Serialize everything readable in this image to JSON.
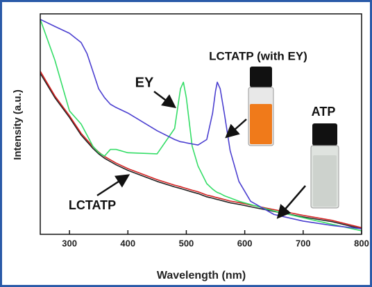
{
  "chart_data": {
    "type": "line",
    "xlabel": "Wavelength (nm)",
    "ylabel": "Intensity (a.u.)",
    "x": [
      250,
      275,
      300,
      320,
      330,
      340,
      350,
      360,
      370,
      380,
      400,
      450,
      480,
      490,
      495,
      500,
      510,
      520,
      535,
      545,
      550,
      553,
      558,
      565,
      575,
      590,
      610,
      650,
      700,
      750,
      800
    ],
    "series": [
      {
        "color": "#222222",
        "values": [
          73,
          62,
          53,
          45,
          42,
          39,
          36.5,
          34.5,
          33,
          31.5,
          29,
          24,
          21.5,
          20.8,
          20.4,
          20,
          19.2,
          18.5,
          17,
          16.4,
          16,
          15.8,
          15.5,
          15,
          14.3,
          13.6,
          12.5,
          10.4,
          7.9,
          5.7,
          2.5
        ]
      },
      {
        "color": "#d42020",
        "values": [
          74,
          62.8,
          53.8,
          45.8,
          42.8,
          39.8,
          37.3,
          35.3,
          33.8,
          32.3,
          29.8,
          24.8,
          22.3,
          21.6,
          21.2,
          20.8,
          20,
          19.3,
          17.8,
          17.2,
          16.8,
          16.6,
          16.3,
          15.8,
          15.1,
          14.4,
          13.3,
          11.2,
          8.6,
          6.3,
          3
        ]
      },
      {
        "color": "#33dd66",
        "values": [
          97.5,
          79,
          56,
          50,
          45,
          40,
          37,
          35.5,
          38.5,
          38.5,
          37,
          36.5,
          48,
          66,
          69,
          62,
          40,
          31,
          23,
          20.5,
          19.5,
          19,
          18.5,
          17.5,
          16.5,
          15,
          13.5,
          10.6,
          7.5,
          4.5,
          1.6
        ]
      },
      {
        "color": "#4b3fd0",
        "values": [
          97.5,
          94.3,
          91.2,
          87,
          82,
          74,
          66,
          62,
          59,
          57.5,
          55,
          47,
          43,
          42,
          41.8,
          41.5,
          41,
          40.5,
          43,
          55,
          65,
          69,
          66,
          55,
          38,
          24,
          15,
          9,
          6,
          4,
          2.5
        ]
      }
    ],
    "xlim": [
      250,
      800
    ],
    "xticks": [
      300,
      400,
      500,
      600,
      700,
      800
    ],
    "ylim": [
      0,
      100
    ],
    "annotations": [
      "LCTATP (with EY)",
      "EY",
      "ATP",
      "LCTATP"
    ]
  }
}
